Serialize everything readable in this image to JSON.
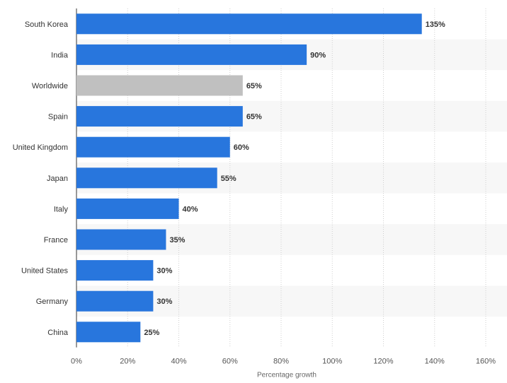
{
  "chart_data": {
    "type": "bar",
    "orientation": "horizontal",
    "title": "",
    "xlabel": "Percentage growth",
    "ylabel": "",
    "categories": [
      "South Korea",
      "India",
      "Worldwide",
      "Spain",
      "United Kingdom",
      "Japan",
      "Italy",
      "France",
      "United States",
      "Germany",
      "China"
    ],
    "values": [
      135,
      90,
      65,
      65,
      60,
      55,
      40,
      35,
      30,
      30,
      25
    ],
    "value_labels": [
      "135%",
      "90%",
      "65%",
      "65%",
      "60%",
      "55%",
      "40%",
      "35%",
      "30%",
      "30%",
      "25%"
    ],
    "highlight_category": "Worldwide",
    "xlim": [
      0,
      160
    ],
    "x_ticks": [
      0,
      20,
      40,
      60,
      80,
      100,
      120,
      140,
      160
    ],
    "x_tick_labels": [
      "0%",
      "20%",
      "40%",
      "60%",
      "80%",
      "100%",
      "120%",
      "140%",
      "160%"
    ],
    "grid": "vertical dotted",
    "legend": "none",
    "colors": {
      "bar": "#2876dd",
      "highlight_bar": "#c0c0c0",
      "band": "#f7f7f7",
      "grid": "#cfcfcf"
    }
  }
}
